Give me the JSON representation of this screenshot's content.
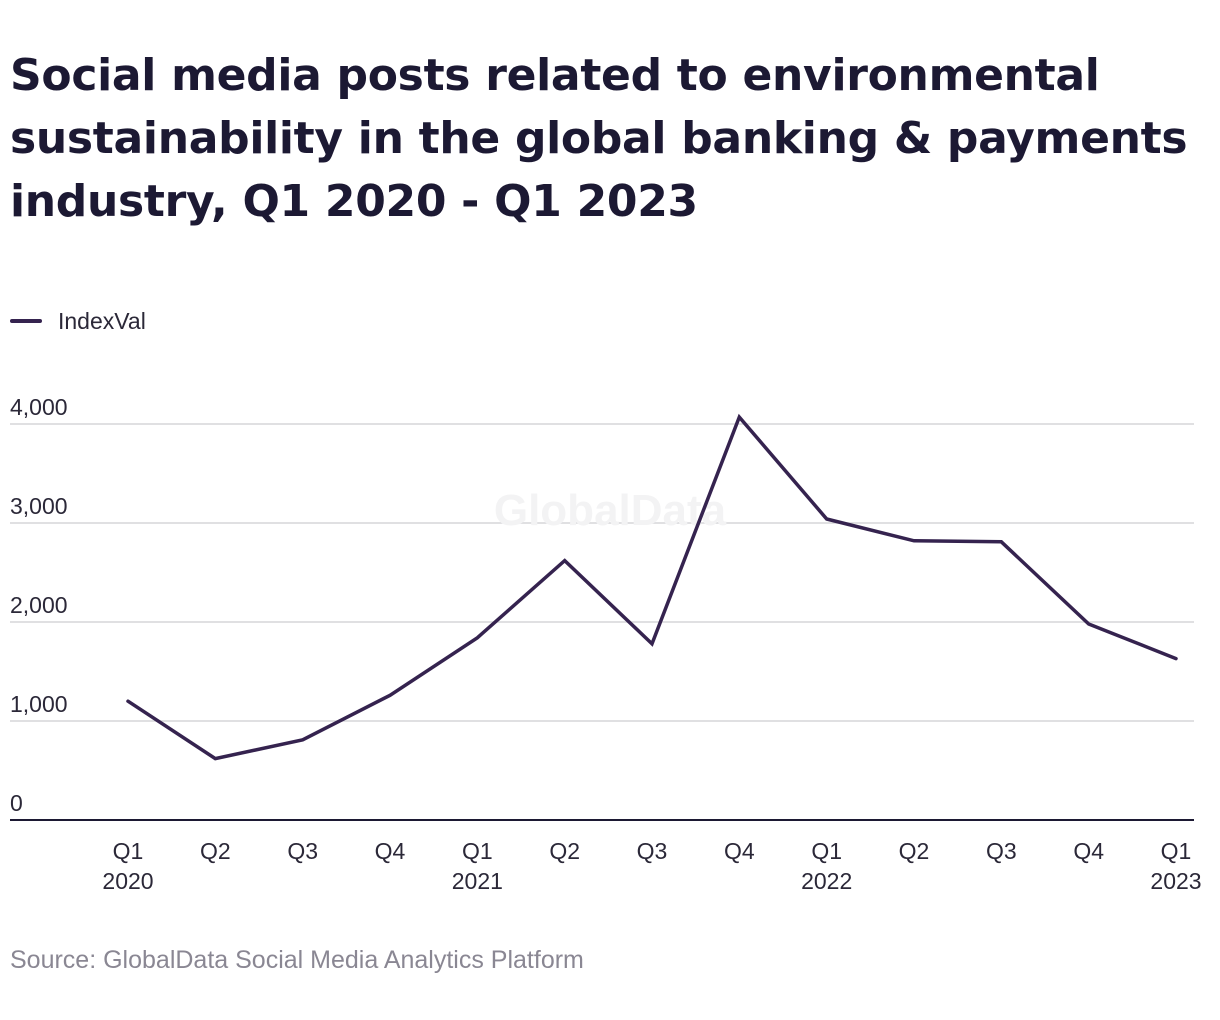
{
  "title": "Social media posts related to environmental sustainability in the global banking & payments industry, Q1 2020 - Q1 2023",
  "watermark": "GlobalData",
  "source": "Source: GlobalData Social Media Analytics Platform",
  "legend": {
    "label": "IndexVal",
    "color": "#35234f"
  },
  "chart_data": {
    "type": "line",
    "title": "Social media posts related to environmental sustainability in the global banking & payments industry, Q1 2020 - Q1 2023",
    "categories": [
      "Q1 2020",
      "Q2 2020",
      "Q3 2020",
      "Q4 2020",
      "Q1 2021",
      "Q2 2021",
      "Q3 2021",
      "Q4 2021",
      "Q1 2022",
      "Q2 2022",
      "Q3 2022",
      "Q4 2022",
      "Q1 2023"
    ],
    "tick_labels": [
      {
        "q": "Q1",
        "year": "2020"
      },
      {
        "q": "Q2",
        "year": ""
      },
      {
        "q": "Q3",
        "year": ""
      },
      {
        "q": "Q4",
        "year": ""
      },
      {
        "q": "Q1",
        "year": "2021"
      },
      {
        "q": "Q2",
        "year": ""
      },
      {
        "q": "Q3",
        "year": ""
      },
      {
        "q": "Q4",
        "year": ""
      },
      {
        "q": "Q1",
        "year": "2022"
      },
      {
        "q": "Q2",
        "year": ""
      },
      {
        "q": "Q3",
        "year": ""
      },
      {
        "q": "Q4",
        "year": ""
      },
      {
        "q": "Q1",
        "year": "2023"
      }
    ],
    "series": [
      {
        "name": "IndexVal",
        "color": "#35234f",
        "values": [
          1200,
          620,
          810,
          1260,
          1840,
          2620,
          1780,
          4070,
          3040,
          2820,
          2810,
          1980,
          1630
        ]
      }
    ],
    "ylim": [
      0,
      4000
    ],
    "yticks": [
      0,
      1000,
      2000,
      3000,
      4000
    ],
    "ytick_labels": [
      "0",
      "1,000",
      "2,000",
      "3,000",
      "4,000"
    ],
    "xlabel": "",
    "ylabel": "",
    "grid": true,
    "legend_position": "top-left"
  }
}
